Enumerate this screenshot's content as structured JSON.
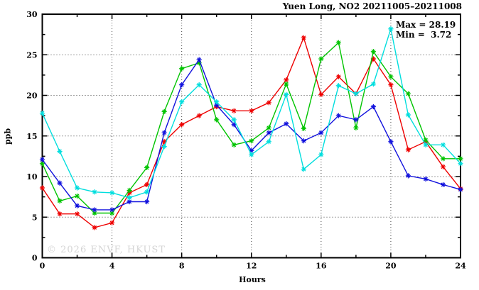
{
  "header": {
    "title": "Yuen Long, NO2 20211005–20211008"
  },
  "stats": {
    "max": "Max = 28.19",
    "min": "Min =  3.72"
  },
  "watermark": "© 2026 ENVF, HKUST",
  "chart_data": {
    "type": "line",
    "title": "Yuen Long, NO2 20211005–20211008",
    "xlabel": "Hours",
    "ylabel": "ppb",
    "xlim": [
      0,
      24
    ],
    "ylim": [
      0,
      30
    ],
    "x_major_ticks": [
      0,
      4,
      8,
      12,
      16,
      20,
      24
    ],
    "x_minor_step": 2,
    "y_major_ticks": [
      0,
      5,
      10,
      15,
      20,
      25,
      30
    ],
    "y_minor_step": 2.5,
    "grid": true,
    "legend_position": "none",
    "annotations": [
      "Max = 28.19",
      "Min =  3.72"
    ],
    "max_value": 28.19,
    "min_value": 3.72,
    "x": [
      0,
      1,
      2,
      3,
      4,
      5,
      6,
      7,
      8,
      9,
      10,
      11,
      12,
      13,
      14,
      15,
      16,
      17,
      18,
      19,
      20,
      21,
      22,
      23,
      24
    ],
    "series": [
      {
        "name": "red",
        "color": "#ee0000",
        "values": [
          8.6,
          5.4,
          5.4,
          3.72,
          4.3,
          8.0,
          9.0,
          14.3,
          16.4,
          17.5,
          18.6,
          18.1,
          18.1,
          19.1,
          21.9,
          27.1,
          20.1,
          22.3,
          20.2,
          24.5,
          21.3,
          13.3,
          14.3,
          11.2,
          8.5
        ]
      },
      {
        "name": "green",
        "color": "#00c400",
        "values": [
          11.6,
          7.0,
          7.6,
          5.5,
          5.5,
          8.3,
          11.1,
          18.0,
          23.3,
          24.0,
          17.0,
          13.9,
          14.4,
          16.0,
          21.4,
          15.9,
          24.5,
          26.5,
          16.0,
          25.4,
          22.3,
          20.2,
          14.5,
          12.2,
          12.2
        ]
      },
      {
        "name": "blue",
        "color": "#1111dd",
        "values": [
          12.1,
          9.2,
          6.4,
          5.9,
          5.9,
          6.9,
          6.9,
          15.4,
          21.3,
          24.4,
          18.8,
          16.4,
          13.2,
          15.4,
          16.5,
          14.4,
          15.4,
          17.5,
          17.0,
          18.6,
          14.3,
          10.1,
          9.7,
          9.0,
          8.4
        ]
      },
      {
        "name": "cyan",
        "color": "#00dede",
        "values": [
          17.8,
          13.1,
          8.6,
          8.1,
          8.0,
          7.4,
          8.1,
          13.7,
          19.2,
          21.3,
          19.2,
          17.0,
          12.7,
          14.3,
          20.1,
          10.9,
          12.7,
          21.2,
          20.2,
          21.4,
          28.19,
          17.6,
          13.9,
          13.9,
          11.6
        ]
      }
    ]
  }
}
